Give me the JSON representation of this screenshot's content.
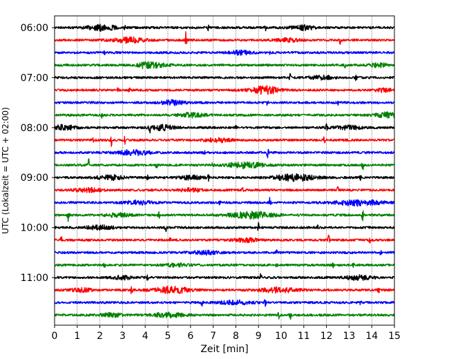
{
  "chart_data": {
    "type": "line",
    "title": "",
    "xlabel": "Zeit  [min]",
    "ylabel": "UTC (Lokalzeit = UTC + 02:00)",
    "xlim": [
      0,
      15
    ],
    "x_ticks": [
      "0",
      "1",
      "2",
      "3",
      "4",
      "5",
      "6",
      "7",
      "8",
      "9",
      "10",
      "11",
      "12",
      "13",
      "14",
      "15"
    ],
    "y_ticks": [
      "06:00",
      "07:00",
      "08:00",
      "09:00",
      "10:00",
      "11:00"
    ],
    "grid": "vertical-dotted",
    "trace_interval_minutes": 15,
    "trace_colors": [
      "#000000",
      "#ff0000",
      "#0000ff",
      "#008000"
    ],
    "series": [
      {
        "start": "06:00",
        "color": "#000000",
        "events": [
          [
            3.1,
            0.5
          ],
          [
            6.8,
            1.0
          ],
          [
            9.3,
            0.7
          ]
        ],
        "bursts": [
          [
            2.1,
            0.6,
            1.2
          ],
          [
            11.0,
            0.5,
            0.9
          ]
        ]
      },
      {
        "start": "06:15",
        "color": "#ff0000",
        "events": [
          [
            1.1,
            0.4
          ],
          [
            5.8,
            1.6
          ],
          [
            12.6,
            0.9
          ]
        ],
        "bursts": [
          [
            3.3,
            0.7,
            1.1
          ],
          [
            10.3,
            0.5,
            0.7
          ]
        ]
      },
      {
        "start": "06:30",
        "color": "#0000ff",
        "events": [
          [
            2.2,
            0.3
          ],
          [
            9.5,
            0.3
          ]
        ],
        "bursts": [
          [
            8.2,
            0.5,
            0.8
          ]
        ]
      },
      {
        "start": "06:45",
        "color": "#008000",
        "events": [
          [
            3.9,
            0.5
          ],
          [
            12.8,
            0.6
          ]
        ],
        "bursts": [
          [
            4.3,
            0.6,
            1.2
          ],
          [
            14.3,
            0.4,
            0.8
          ]
        ]
      },
      {
        "start": "07:00",
        "color": "#000000",
        "events": [
          [
            1.2,
            0.3
          ],
          [
            10.4,
            0.6
          ],
          [
            13.3,
            0.5
          ]
        ],
        "bursts": [
          [
            11.8,
            0.5,
            0.8
          ]
        ]
      },
      {
        "start": "07:15",
        "color": "#ff0000",
        "events": [
          [
            2.8,
            0.5
          ],
          [
            3.3,
            0.4
          ]
        ],
        "bursts": [
          [
            9.3,
            0.6,
            1.6
          ],
          [
            14.5,
            0.4,
            0.7
          ]
        ]
      },
      {
        "start": "07:30",
        "color": "#0000ff",
        "events": [
          [
            3.6,
            0.5
          ],
          [
            9.4,
            0.6
          ],
          [
            12.5,
            0.5
          ]
        ],
        "bursts": [
          [
            5.2,
            0.5,
            0.9
          ]
        ]
      },
      {
        "start": "07:45",
        "color": "#008000",
        "events": [
          [
            2.1,
            0.5
          ]
        ],
        "bursts": [
          [
            6.0,
            0.6,
            0.9
          ],
          [
            14.7,
            0.5,
            1.1
          ]
        ]
      },
      {
        "start": "08:00",
        "color": "#000000",
        "events": [
          [
            4.2,
            1.2
          ],
          [
            8.0,
            0.6
          ],
          [
            12.0,
            1.0
          ]
        ],
        "bursts": [
          [
            0.4,
            0.5,
            1.0
          ],
          [
            4.8,
            0.5,
            1.1
          ],
          [
            13.0,
            0.6,
            0.8
          ]
        ]
      },
      {
        "start": "08:15",
        "color": "#ff0000",
        "events": [
          [
            1.7,
            0.4
          ],
          [
            2.5,
            1.2
          ],
          [
            3.1,
            0.7
          ],
          [
            11.9,
            0.6
          ]
        ],
        "bursts": [
          [
            7.2,
            0.6,
            0.8
          ]
        ]
      },
      {
        "start": "08:30",
        "color": "#0000ff",
        "events": [
          [
            6.6,
            0.6
          ],
          [
            9.4,
            1.3
          ]
        ],
        "bursts": [
          [
            3.5,
            0.7,
            1.0
          ]
        ]
      },
      {
        "start": "08:45",
        "color": "#008000",
        "events": [
          [
            1.5,
            1.2
          ],
          [
            4.5,
            0.8
          ],
          [
            7.0,
            0.7
          ],
          [
            13.6,
            1.0
          ]
        ],
        "bursts": [
          [
            8.4,
            0.8,
            1.2
          ]
        ]
      },
      {
        "start": "09:00",
        "color": "#000000",
        "events": [
          [
            4.1,
            0.6
          ],
          [
            6.8,
            0.5
          ],
          [
            13.5,
            0.6
          ]
        ],
        "bursts": [
          [
            2.5,
            0.6,
            0.9
          ],
          [
            10.6,
            0.9,
            1.4
          ],
          [
            6.0,
            0.5,
            0.8
          ]
        ]
      },
      {
        "start": "09:15",
        "color": "#ff0000",
        "events": [
          [
            8.3,
            1.0
          ],
          [
            12.5,
            0.6
          ]
        ],
        "bursts": [
          [
            1.5,
            0.6,
            0.8
          ],
          [
            6.0,
            0.5,
            0.7
          ]
        ]
      },
      {
        "start": "09:30",
        "color": "#0000ff",
        "events": [
          [
            7.3,
            0.6
          ],
          [
            9.5,
            1.1
          ]
        ],
        "bursts": [
          [
            13.4,
            1.0,
            1.2
          ],
          [
            3.7,
            0.6,
            0.8
          ]
        ]
      },
      {
        "start": "09:45",
        "color": "#008000",
        "events": [
          [
            0.6,
            1.2
          ],
          [
            4.6,
            0.9
          ],
          [
            13.6,
            1.1
          ]
        ],
        "bursts": [
          [
            8.7,
            0.9,
            1.4
          ],
          [
            2.8,
            0.5,
            0.8
          ]
        ]
      },
      {
        "start": "10:00",
        "color": "#000000",
        "events": [
          [
            4.9,
            0.8
          ],
          [
            9.0,
            1.2
          ],
          [
            11.6,
            0.5
          ]
        ],
        "bursts": [
          [
            2.0,
            0.6,
            0.8
          ]
        ]
      },
      {
        "start": "10:15",
        "color": "#ff0000",
        "events": [
          [
            0.3,
            0.7
          ],
          [
            5.1,
            0.5
          ],
          [
            12.1,
            1.0
          ],
          [
            13.9,
            0.7
          ]
        ],
        "bursts": [
          [
            8.5,
            0.5,
            0.8
          ]
        ]
      },
      {
        "start": "10:30",
        "color": "#0000ff",
        "events": [
          [
            9.8,
            0.5
          ],
          [
            14.4,
            0.6
          ]
        ],
        "bursts": [
          [
            6.6,
            0.6,
            0.8
          ]
        ]
      },
      {
        "start": "10:45",
        "color": "#008000",
        "events": [
          [
            2.2,
            0.3
          ],
          [
            9.8,
            0.4
          ],
          [
            12.3,
            0.5
          ],
          [
            13.2,
            0.5
          ]
        ],
        "bursts": [
          [
            5.4,
            0.5,
            0.7
          ]
        ]
      },
      {
        "start": "11:00",
        "color": "#000000",
        "events": [
          [
            4.1,
            0.5
          ],
          [
            9.1,
            0.6
          ]
        ],
        "bursts": [
          [
            3.0,
            0.5,
            0.7
          ],
          [
            13.4,
            0.6,
            0.9
          ]
        ]
      },
      {
        "start": "11:15",
        "color": "#ff0000",
        "events": [
          [
            3.4,
            1.0
          ],
          [
            14.3,
            0.6
          ]
        ],
        "bursts": [
          [
            5.2,
            0.8,
            1.3
          ],
          [
            9.9,
            0.8,
            1.0
          ],
          [
            1.2,
            0.5,
            0.7
          ]
        ]
      },
      {
        "start": "11:30",
        "color": "#0000ff",
        "events": [
          [
            6.5,
            0.6
          ],
          [
            9.3,
            0.7
          ],
          [
            13.5,
            0.8
          ]
        ],
        "bursts": [
          [
            8.0,
            0.7,
            0.8
          ]
        ]
      },
      {
        "start": "11:45",
        "color": "#008000",
        "events": [
          [
            9.9,
            0.9
          ],
          [
            10.4,
            0.9
          ]
        ],
        "bursts": [
          [
            5.0,
            0.7,
            0.9
          ],
          [
            2.5,
            0.5,
            0.7
          ]
        ]
      }
    ]
  }
}
